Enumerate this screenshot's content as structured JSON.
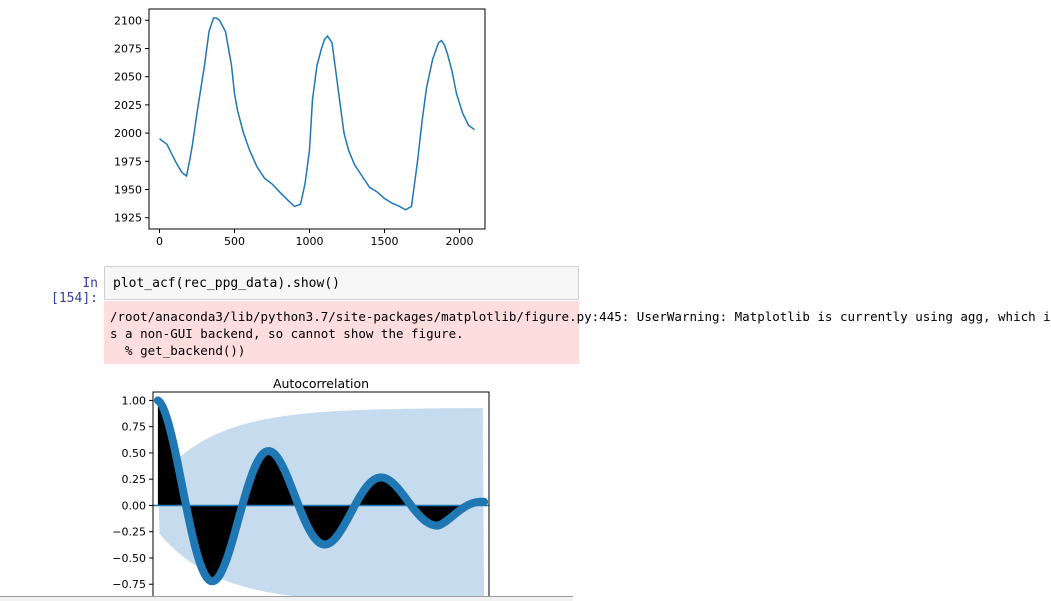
{
  "cell": {
    "prompt": "In [154]:",
    "code": "plot_acf(rec_ppg_data).show()",
    "stderr_lines": [
      "/root/anaconda3/lib/python3.7/site-packages/matplotlib/figure.py:445: UserWarning: Matplotlib is currently using agg, which i",
      "s a non-GUI backend, so cannot show the figure.",
      "  % get_backend())"
    ]
  },
  "colors": {
    "line": "#1f77b4",
    "confint": "#c6dbee",
    "stem_fill": "#000000",
    "stderr_bg": "#fddddd",
    "prompt": "#303f9f"
  },
  "chart_data": [
    {
      "type": "line",
      "title": "",
      "xlabel": "",
      "ylabel": "",
      "xlim": [
        -70,
        2170
      ],
      "ylim": [
        1915,
        2110
      ],
      "xticks": [
        0,
        500,
        1000,
        1500,
        2000
      ],
      "yticks": [
        1925,
        1950,
        1975,
        2000,
        2025,
        2050,
        2075,
        2100
      ],
      "series": [
        {
          "x": [
            0,
            50,
            80,
            110,
            150,
            180,
            200,
            220,
            250,
            300,
            330,
            360,
            380,
            400,
            440,
            480,
            500,
            520,
            560,
            600,
            650,
            700,
            750,
            800,
            860,
            900,
            940,
            970,
            1000,
            1020,
            1050,
            1080,
            1100,
            1120,
            1150,
            1170,
            1200,
            1230,
            1260,
            1300,
            1350,
            1400,
            1450,
            1500,
            1550,
            1600,
            1640,
            1680,
            1700,
            1720,
            1750,
            1780,
            1820,
            1860,
            1880,
            1900,
            1920,
            1950,
            1980,
            2020,
            2060,
            2100
          ],
          "y": [
            1995,
            1990,
            1982,
            1974,
            1965,
            1962,
            1975,
            1990,
            2018,
            2060,
            2090,
            2102,
            2102,
            2100,
            2090,
            2060,
            2035,
            2020,
            2000,
            1985,
            1970,
            1960,
            1955,
            1948,
            1940,
            1935,
            1937,
            1955,
            1985,
            2030,
            2060,
            2075,
            2083,
            2086,
            2080,
            2060,
            2030,
            2000,
            1985,
            1972,
            1962,
            1952,
            1948,
            1942,
            1938,
            1935,
            1932,
            1935,
            1955,
            1975,
            2010,
            2040,
            2065,
            2080,
            2082,
            2078,
            2070,
            2055,
            2035,
            2018,
            2007,
            2003
          ]
        }
      ]
    },
    {
      "type": "scatter",
      "title": "Autocorrelation",
      "xlabel": "",
      "ylabel": "",
      "ylim": [
        -0.9,
        1.08
      ],
      "yticks": [
        1.0,
        0.75,
        0.5,
        0.25,
        0.0,
        -0.25,
        -0.5,
        -0.75
      ],
      "ytick_labels": [
        "1.00",
        "0.75",
        "0.50",
        "0.25",
        "0.00",
        "−0.25",
        "−0.50",
        "−0.75"
      ],
      "xlim": [
        -15,
        1015
      ],
      "acf": {
        "amplitude_decay": 520,
        "period": 345,
        "tail_start_lag": 860,
        "lags": 1000
      },
      "confint": {
        "start": 0.25,
        "end": 0.93
      }
    }
  ]
}
